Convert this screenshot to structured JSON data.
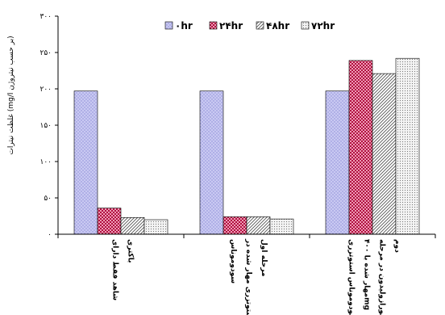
{
  "chart_data": {
    "type": "bar",
    "ylabel": "غلظت نیترات (mg/l بر حسب نیتروژن)",
    "ylim": [
      0,
      300
    ],
    "yticks": [
      "۰",
      "۵۰",
      "۱۰۰",
      "۱۵۰",
      "۲۰۰",
      "۲۵۰",
      "۳۰۰"
    ],
    "legend_position": "top",
    "grid": false,
    "categories": [
      [
        "شاهد فقط دارای",
        "باکتری"
      ],
      [
        "سودوموناس",
        "استوتزری مهار شده در",
        "مرحله اول"
      ],
      [
        "سودوموناس استوتزری",
        "مهار شده با ۴۰۰mg",
        "فورازولیدون در مرحله",
        "دوم"
      ]
    ],
    "series": [
      {
        "name": "۰hr",
        "values": [
          197,
          197,
          197
        ],
        "fill": "#c7c7f0",
        "pattern": "dots"
      },
      {
        "name": "۲۴hr",
        "values": [
          36,
          24,
          239
        ],
        "fill": "#b0103f",
        "pattern": "checker"
      },
      {
        "name": "۴۸hr",
        "values": [
          23,
          24,
          221
        ],
        "fill": "#ffffff",
        "pattern": "diagonal"
      },
      {
        "name": "۷۲hr",
        "values": [
          20,
          21,
          242
        ],
        "fill": "#e8e8e8",
        "pattern": "fine-dots"
      }
    ]
  }
}
